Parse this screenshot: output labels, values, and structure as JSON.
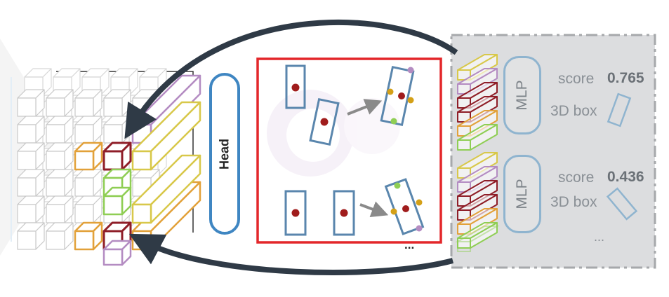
{
  "head": {
    "label": "Head"
  },
  "proposals": {
    "ellipsis": "..."
  },
  "mlp_blocks": [
    {
      "label": "MLP",
      "score_label": "score",
      "score_value": "0.765",
      "box_label": "3D box"
    },
    {
      "label": "MLP",
      "score_label": "score",
      "score_value": "0.436",
      "box_label": "3D box"
    }
  ],
  "mlp_ellipsis": "...",
  "colors": {
    "arrow": "#2f3a46",
    "proposal_frame": "#e3272a",
    "box_outline": "#5a86ad",
    "center_dot": "#a01c1c",
    "head_border": "#3f86c2",
    "mlp_panel": "#d9dadb",
    "cube_orange": "#e2a13a",
    "cube_red": "#8f1e28",
    "cube_green": "#8fce54",
    "cube_purple": "#b48cc2",
    "cube_yellow": "#d8c84a"
  }
}
